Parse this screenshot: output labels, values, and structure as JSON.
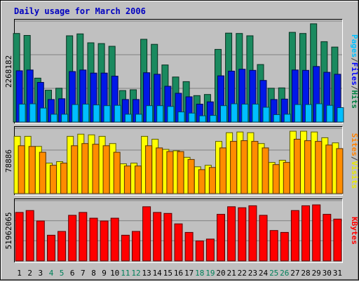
{
  "chart_data": {
    "type": "bar",
    "title": "Daily usage for March 2006",
    "categories": [
      "1",
      "2",
      "3",
      "4",
      "5",
      "6",
      "7",
      "8",
      "9",
      "10",
      "11",
      "12",
      "13",
      "14",
      "15",
      "16",
      "17",
      "18",
      "19",
      "20",
      "21",
      "22",
      "23",
      "24",
      "25",
      "26",
      "27",
      "28",
      "29",
      "30",
      "31"
    ],
    "weekend_days": [
      "4",
      "5",
      "11",
      "12",
      "18",
      "19",
      "25",
      "26"
    ],
    "panels": [
      {
        "name": "top",
        "y_tick_label": "2268182",
        "ylim": [
          0,
          2600000
        ],
        "legend": [
          "Pages",
          "/",
          "Files",
          "/",
          "Hits"
        ],
        "legend_colors": [
          "#00c0ff",
          "#404040",
          "#0000ff",
          "#404040",
          "#008040"
        ],
        "series": [
          {
            "name": "Hits",
            "color": "#1a8a5f",
            "values": [
              2280000,
              2230000,
              1130000,
              820000,
              870000,
              2220000,
              2270000,
              2040000,
              2020000,
              1950000,
              810000,
              830000,
              2130000,
              2000000,
              1470000,
              1160000,
              1040000,
              680000,
              710000,
              1870000,
              2290000,
              2280000,
              2220000,
              1480000,
              870000,
              880000,
              2310000,
              2280000,
              2530000,
              2070000,
              1930000
            ]
          },
          {
            "name": "Files",
            "color": "#0018e8",
            "values": [
              1320000,
              1340000,
              1020000,
              580000,
              600000,
              1300000,
              1340000,
              1260000,
              1260000,
              1180000,
              580000,
              580000,
              1270000,
              1230000,
              920000,
              740000,
              650000,
              460000,
              520000,
              1190000,
              1310000,
              1360000,
              1330000,
              1070000,
              580000,
              590000,
              1340000,
              1330000,
              1430000,
              1280000,
              1230000
            ]
          },
          {
            "name": "Pages",
            "color": "#00bfff",
            "values": [
              460000,
              470000,
              360000,
              200000,
              200000,
              450000,
              460000,
              440000,
              420000,
              430000,
              200000,
              200000,
              420000,
              420000,
              400000,
              260000,
              230000,
              160000,
              170000,
              420000,
              470000,
              460000,
              460000,
              380000,
              190000,
              200000,
              450000,
              450000,
              470000,
              430000,
              370000
            ]
          }
        ]
      },
      {
        "name": "middle",
        "y_tick_label": "78886",
        "ylim": [
          0,
          90000
        ],
        "legend": [
          "Sites",
          "/",
          "Visits"
        ],
        "legend_colors": [
          "#ff8000",
          "#404040",
          "#e8e800"
        ],
        "series": [
          {
            "name": "Visits",
            "color": "#ffff00",
            "values": [
              79000,
              79000,
              65000,
              42000,
              44000,
              79000,
              82000,
              81000,
              79000,
              69000,
              41000,
              42000,
              79000,
              75000,
              61000,
              59000,
              50000,
              37000,
              39000,
              72000,
              84000,
              85000,
              84000,
              69000,
              43000,
              46000,
              86000,
              86000,
              85000,
              77000,
              70000
            ]
          },
          {
            "name": "Sites",
            "color": "#ff8c00",
            "values": [
              66000,
              65000,
              57000,
              39000,
              42000,
              66000,
              69000,
              68000,
              66000,
              57000,
              38000,
              38000,
              66000,
              63000,
              58000,
              58000,
              47000,
              33000,
              36000,
              63000,
              72000,
              73000,
              72000,
              63000,
              40000,
              43000,
              75000,
              73000,
              72000,
              67000,
              62000
            ]
          }
        ]
      },
      {
        "name": "bottom",
        "y_tick_label": "51962065",
        "ylim": [
          0,
          63500000
        ],
        "legend": [
          "KBytes"
        ],
        "legend_colors": [
          "#ff0000"
        ],
        "series": [
          {
            "name": "KBytes",
            "color": "#ff0000",
            "values": [
              51000000,
              53000000,
              42000000,
              27000000,
              31000000,
              48000000,
              51000000,
              45000000,
              42000000,
              45000000,
              27000000,
              31000000,
              57000000,
              51000000,
              50000000,
              39000000,
              30000000,
              21000000,
              23000000,
              49000000,
              57000000,
              56000000,
              58000000,
              48000000,
              32000000,
              30000000,
              53000000,
              58000000,
              59000000,
              49000000,
              44000000
            ]
          }
        ]
      }
    ]
  }
}
